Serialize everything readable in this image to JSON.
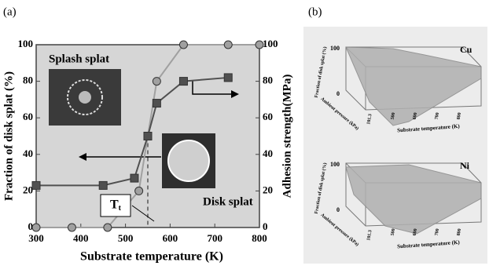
{
  "chart_data": {
    "type": "line",
    "panel_label": "(a)",
    "xlabel": "Substrate temperature (K)",
    "ylabel": "Fraction of disk splat (%)",
    "y2label": "Adhesion strength(MPa)",
    "xlim": [
      300,
      800
    ],
    "xticks": [
      300,
      400,
      500,
      600,
      700,
      800
    ],
    "ylim": [
      0,
      100
    ],
    "yticks": [
      0,
      20,
      40,
      60,
      80,
      100
    ],
    "y2lim": [
      0,
      100
    ],
    "y2ticks": [
      0,
      20,
      40,
      60,
      80,
      100
    ],
    "annotations": [
      "Splash splat",
      "Disk splat",
      "Tt"
    ],
    "series": [
      {
        "color": "#a0a0a0",
        "marker": "circle",
        "x": [
          300,
          380,
          460,
          530,
          550,
          570,
          630,
          730,
          800
        ],
        "values": [
          0,
          0,
          0,
          20,
          50,
          80,
          100,
          100,
          100
        ]
      },
      {
        "color": "#505050",
        "marker": "square",
        "axis": "y2",
        "x": [
          300,
          450,
          520,
          550,
          570,
          630,
          730
        ],
        "values": [
          23,
          23,
          27,
          50,
          68,
          80,
          82
        ]
      }
    ]
  },
  "panel_b": {
    "label": "(b)",
    "plots": [
      {
        "metal": "Cu",
        "zlabel": "Fraction of disk splat (%)",
        "zticks": [
          "100",
          "0"
        ],
        "pressure_label": "Ambient pressure (kPa)",
        "pressure_tick": "101.3",
        "temp_label": "Substrate temperature (K)",
        "temp_ticks": [
          "500",
          "600",
          "700",
          "800"
        ]
      },
      {
        "metal": "Ni",
        "zlabel": "Fraction of disk splat (%)",
        "zticks": [
          "100",
          "0"
        ],
        "pressure_label": "Ambient pressure (kPa)",
        "pressure_tick": "101.3",
        "temp_label": "Substrate temperature (K)",
        "temp_ticks": [
          "500",
          "600",
          "700",
          "800"
        ]
      }
    ]
  }
}
